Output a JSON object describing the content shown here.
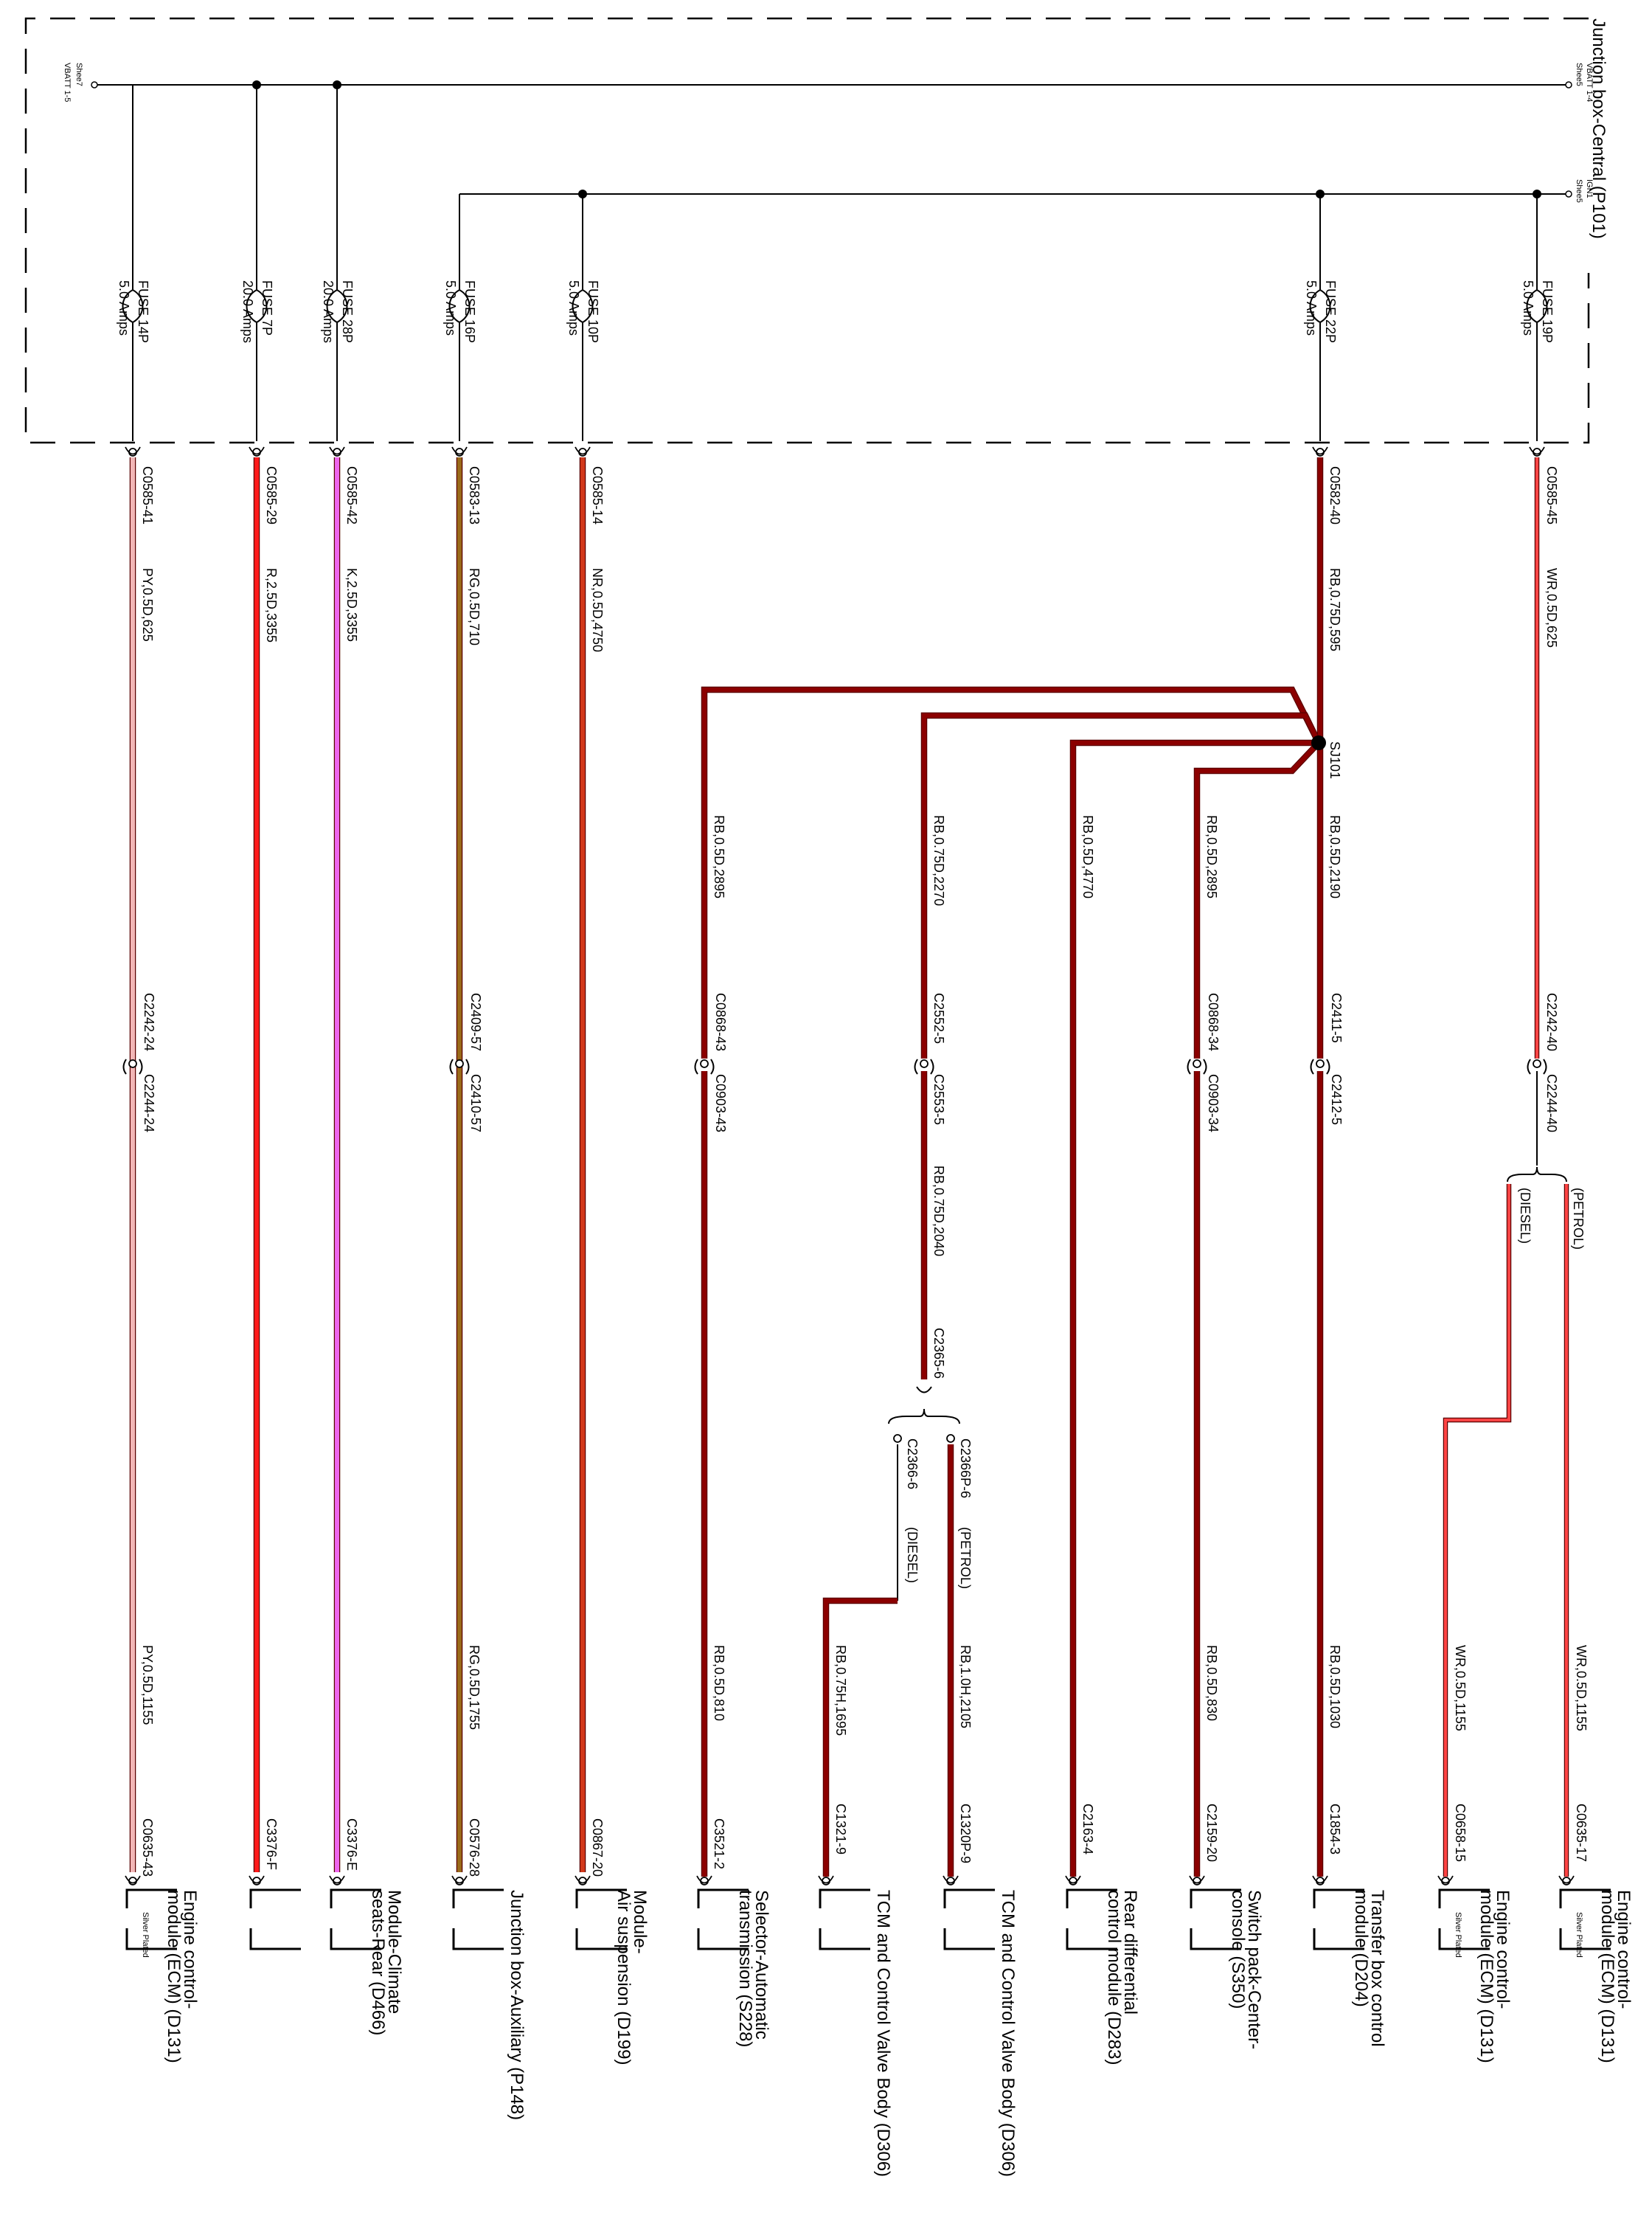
{
  "junction_box": {
    "title": "Junction box-Central (P101)"
  },
  "busbars": [
    {
      "id": "vbatt",
      "left_label": "Shee7",
      "left_sub": "VBATT 1-5",
      "right_label": "VBATT 1-4",
      "right_sub": "Shee5"
    },
    {
      "id": "ign",
      "right_label": "IGN1",
      "right_sub": "Shee5"
    }
  ],
  "circuits": [
    {
      "id": "c1",
      "fuse": "FUSE 14P",
      "rating": "5.0 Amps",
      "top_conn": "C0585-41",
      "top_wire": "PY,0.5D,625",
      "mid_conn": "C2242-24 C2244-24",
      "lower_wire": "PY,0.5D,1155",
      "end_conn": "C0635-43",
      "dest": [
        "Engine control-",
        "module (ECM) (D131)"
      ],
      "note": "Silver Plated",
      "color": "#f2b6b6"
    },
    {
      "id": "c2",
      "fuse": "FUSE 7P",
      "rating": "20.0 Amps",
      "top_conn": "C0585-29",
      "top_wire": "R,2.5D,3355",
      "end_conn": "C3376-F",
      "dest": [],
      "color": "#ff1a1a"
    },
    {
      "id": "c3",
      "fuse": "FUSE 28P",
      "rating": "20.0 Amps",
      "top_conn": "C0585-42",
      "top_wire": "K,2.5D,3355",
      "end_conn": "C3376-E",
      "dest": [
        "Module-Climate",
        "seats-Rear (D466)"
      ],
      "color": "#ee66ee"
    },
    {
      "id": "c4",
      "fuse": "FUSE 16P",
      "rating": "5.0 Amps",
      "top_conn": "C0583-13",
      "top_wire": "RG,0.5D,710",
      "mid_conn": "C2409-57 C2410-57",
      "lower_wire": "RG,0.5D,1755",
      "end_conn": "C0576-28",
      "dest": [
        "Junction box-Auxiliary (P148)"
      ],
      "color": "#9a6a1a"
    },
    {
      "id": "c5",
      "fuse": "FUSE 10P",
      "rating": "5.0 Amps",
      "top_conn": "C0585-14",
      "top_wire": "NR,0.5D,4750",
      "end_conn": "C0867-20",
      "dest": [
        "Module-",
        "Air suspension (D199)"
      ],
      "color": "#d2381a"
    },
    {
      "id": "c6",
      "upper_wire": "RB,0.5D,2895",
      "mid_conn": "C0868-43 C0903-43",
      "lower_wire": "RB,0.5D,810",
      "end_conn": "C3521-2",
      "dest": [
        "Selector-Automatic",
        "transmission (S228)"
      ],
      "color": "#8b0000"
    },
    {
      "id": "c7",
      "upper_wire": "RB,0.75D,2270",
      "mid_conn": "C2552-5 C2553-5",
      "mid_wire": "RB,0.75D,2040",
      "split_conn": "C2365-6",
      "dest_petrol": {
        "conn": "C2366P-6",
        "tag": "(PETROL)",
        "wire": "RB,1.0H,2105",
        "end_conn": "C1320P-9",
        "dest": [
          "TCM and Control Valve Body (D306)"
        ]
      },
      "dest_diesel": {
        "conn": "C2366-6",
        "tag": "(DIESEL)",
        "wire": "RB,0.75H,1695",
        "end_conn": "C1321-9",
        "dest": [
          "TCM and Control Valve Body (D306)"
        ]
      },
      "color": "#8b0000"
    },
    {
      "id": "c8",
      "upper_wire": "RB,0.5D,4770",
      "end_conn": "C2163-4",
      "dest": [
        "Rear differential",
        "control module (D283)"
      ],
      "color": "#8b0000"
    },
    {
      "id": "c9",
      "upper_wire": "RB,0.5D,2895",
      "mid_conn": "C0868-34 C0903-34",
      "lower_wire": "RB,0.5D,830",
      "end_conn": "C2159-20",
      "dest": [
        "Switch pack-Center-",
        "console (S350)"
      ],
      "color": "#8b0000"
    },
    {
      "id": "c10",
      "fuse": "FUSE 22P",
      "rating": "5.0 Amps",
      "top_conn": "C0582-40",
      "top_wire": "RB,0.75D,595",
      "splice": "SJ101",
      "upper_wire": "RB,0.5D,2190",
      "mid_conn": "C2411-5 C2412-5",
      "lower_wire": "RB,0.5D,1030",
      "end_conn": "C1854-3",
      "dest": [
        "Transfer box control",
        "module (D204)"
      ],
      "color": "#8b0000"
    },
    {
      "id": "c11",
      "fuse": "FUSE 19P",
      "rating": "5.0 Amps",
      "top_conn": "C0585-45",
      "top_wire": "WR,0.5D,625",
      "mid_conn": "C2242-40 C2244-40",
      "diesel": {
        "tag": "(DIESEL)",
        "wire": "WR,0.5D,1155",
        "end_conn": "C0658-15",
        "dest": [
          "Engine control-",
          "module (ECM) (D131)"
        ],
        "note": "Silver Plated"
      },
      "petrol": {
        "tag": "(PETROL)",
        "wire": "WR,0.5D,1155",
        "end_conn": "C0635-17",
        "dest": [
          "Engine control-",
          "module (ECM) (D131)"
        ],
        "note": "Silver Plated"
      },
      "color": "#ff4444"
    }
  ]
}
